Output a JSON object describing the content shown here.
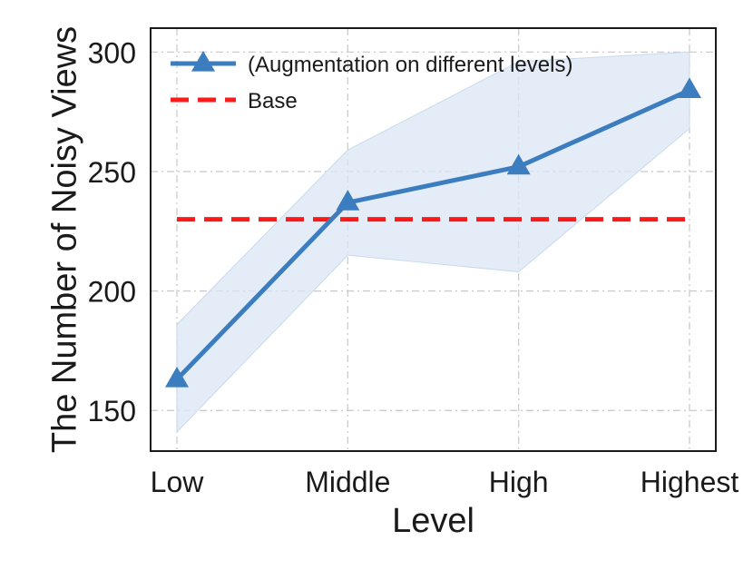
{
  "chart_data": {
    "type": "line",
    "title": "",
    "xlabel": "Level",
    "ylabel": "The Number of Noisy Views",
    "categories": [
      "Low",
      "Middle",
      "High",
      "Highest"
    ],
    "ylim": [
      133,
      310
    ],
    "yticks": [
      150,
      200,
      250,
      300
    ],
    "grid": true,
    "legend_position": "top-left",
    "series": [
      {
        "name": "(Augmentation on different levels)",
        "values": [
          163,
          237,
          252,
          284
        ],
        "band_lower": [
          141,
          215,
          208,
          268
        ],
        "band_upper": [
          186,
          259,
          296,
          300
        ],
        "marker": "triangle",
        "color": "#3b7dbf",
        "band_color": "#dbe7f4"
      },
      {
        "name": "Base",
        "values": [
          230,
          230,
          230,
          230
        ],
        "style": "dashed",
        "color": "#ff1a1a"
      }
    ]
  }
}
